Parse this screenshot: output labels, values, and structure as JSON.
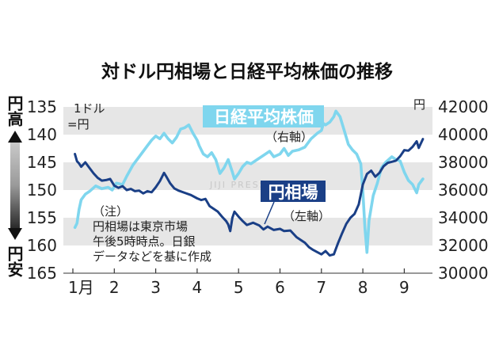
{
  "chart_data": {
    "type": "line",
    "title": "対ドル円相場と日経平均株価の推移",
    "x_ticks": [
      "1月",
      "2",
      "3",
      "4",
      "5",
      "6",
      "7",
      "8",
      "9"
    ],
    "left_axis": {
      "top_label": "円高",
      "bottom_label": "円安",
      "unit_label_1": "1ドル",
      "unit_label_2": "=円",
      "min": 135,
      "max": 165,
      "inverted": true,
      "ticks": [
        "135",
        "140",
        "145",
        "150",
        "155",
        "160",
        "165"
      ]
    },
    "right_axis": {
      "unit_label": "円",
      "min": 30000,
      "max": 42000,
      "ticks": [
        "42000",
        "40000",
        "38000",
        "36000",
        "34000",
        "32000",
        "30000"
      ]
    },
    "series": [
      {
        "name": "日経平均株価",
        "axis_note": "（右軸）",
        "axis": "right",
        "color": "#7fd6ee",
        "points": [
          [
            1.05,
            33300
          ],
          [
            1.1,
            33600
          ],
          [
            1.15,
            34600
          ],
          [
            1.2,
            35300
          ],
          [
            1.3,
            35700
          ],
          [
            1.4,
            35900
          ],
          [
            1.55,
            36300
          ],
          [
            1.7,
            36100
          ],
          [
            1.85,
            36200
          ],
          [
            1.95,
            36000
          ],
          [
            2.05,
            36500
          ],
          [
            2.2,
            36400
          ],
          [
            2.3,
            37000
          ],
          [
            2.45,
            37800
          ],
          [
            2.6,
            38400
          ],
          [
            2.7,
            38800
          ],
          [
            2.8,
            39200
          ],
          [
            2.9,
            39600
          ],
          [
            3.0,
            39900
          ],
          [
            3.1,
            39700
          ],
          [
            3.2,
            40100
          ],
          [
            3.3,
            39700
          ],
          [
            3.4,
            39400
          ],
          [
            3.5,
            39800
          ],
          [
            3.6,
            40400
          ],
          [
            3.7,
            40500
          ],
          [
            3.8,
            40700
          ],
          [
            3.9,
            40100
          ],
          [
            4.0,
            39600
          ],
          [
            4.05,
            39200
          ],
          [
            4.15,
            38600
          ],
          [
            4.25,
            38400
          ],
          [
            4.35,
            38700
          ],
          [
            4.45,
            38200
          ],
          [
            4.55,
            37200
          ],
          [
            4.65,
            37600
          ],
          [
            4.75,
            38200
          ],
          [
            4.85,
            37300
          ],
          [
            4.9,
            36800
          ],
          [
            5.0,
            37200
          ],
          [
            5.1,
            37700
          ],
          [
            5.2,
            38000
          ],
          [
            5.3,
            37900
          ],
          [
            5.45,
            38200
          ],
          [
            5.6,
            38500
          ],
          [
            5.75,
            38800
          ],
          [
            5.85,
            38400
          ],
          [
            6.0,
            38600
          ],
          [
            6.1,
            39000
          ],
          [
            6.2,
            38500
          ],
          [
            6.3,
            38800
          ],
          [
            6.45,
            38900
          ],
          [
            6.6,
            39100
          ],
          [
            6.75,
            39700
          ],
          [
            6.9,
            40100
          ],
          [
            7.0,
            40300
          ],
          [
            7.05,
            40800
          ],
          [
            7.1,
            40700
          ],
          [
            7.2,
            40900
          ],
          [
            7.3,
            41300
          ],
          [
            7.35,
            41700
          ],
          [
            7.45,
            41300
          ],
          [
            7.55,
            40300
          ],
          [
            7.65,
            39300
          ],
          [
            7.75,
            38900
          ],
          [
            7.85,
            38600
          ],
          [
            7.95,
            37900
          ],
          [
            8.0,
            35900
          ],
          [
            8.05,
            33300
          ],
          [
            8.1,
            31500
          ],
          [
            8.15,
            33800
          ],
          [
            8.25,
            35600
          ],
          [
            8.35,
            36500
          ],
          [
            8.45,
            37600
          ],
          [
            8.55,
            38000
          ],
          [
            8.7,
            38400
          ],
          [
            8.8,
            38200
          ],
          [
            8.9,
            38100
          ],
          [
            9.0,
            37300
          ],
          [
            9.1,
            36700
          ],
          [
            9.2,
            36400
          ],
          [
            9.3,
            35800
          ],
          [
            9.35,
            36400
          ],
          [
            9.45,
            36800
          ]
        ]
      },
      {
        "name": "円相場",
        "axis_note": "（左軸）",
        "axis": "left",
        "color": "#1a3f86",
        "points": [
          [
            1.05,
            143.5
          ],
          [
            1.1,
            144.8
          ],
          [
            1.15,
            145.2
          ],
          [
            1.2,
            145.8
          ],
          [
            1.3,
            145.0
          ],
          [
            1.4,
            146.0
          ],
          [
            1.5,
            147.0
          ],
          [
            1.6,
            147.8
          ],
          [
            1.7,
            148.3
          ],
          [
            1.8,
            148.2
          ],
          [
            1.9,
            148.0
          ],
          [
            2.0,
            149.2
          ],
          [
            2.1,
            149.6
          ],
          [
            2.2,
            149.3
          ],
          [
            2.3,
            150.0
          ],
          [
            2.4,
            149.8
          ],
          [
            2.5,
            150.2
          ],
          [
            2.6,
            150.1
          ],
          [
            2.7,
            150.6
          ],
          [
            2.8,
            150.2
          ],
          [
            2.9,
            150.4
          ],
          [
            3.0,
            149.5
          ],
          [
            3.1,
            148.4
          ],
          [
            3.2,
            146.9
          ],
          [
            3.25,
            147.5
          ],
          [
            3.35,
            148.8
          ],
          [
            3.45,
            149.7
          ],
          [
            3.55,
            150.1
          ],
          [
            3.7,
            150.5
          ],
          [
            3.85,
            150.9
          ],
          [
            4.0,
            151.5
          ],
          [
            4.1,
            151.8
          ],
          [
            4.2,
            151.6
          ],
          [
            4.3,
            152.9
          ],
          [
            4.4,
            153.4
          ],
          [
            4.5,
            153.9
          ],
          [
            4.6,
            154.8
          ],
          [
            4.7,
            155.6
          ],
          [
            4.75,
            156.2
          ],
          [
            4.8,
            157.4
          ],
          [
            4.85,
            155.0
          ],
          [
            4.9,
            153.9
          ],
          [
            5.0,
            154.8
          ],
          [
            5.1,
            155.6
          ],
          [
            5.2,
            156.3
          ],
          [
            5.35,
            155.9
          ],
          [
            5.5,
            156.4
          ],
          [
            5.6,
            157.1
          ],
          [
            5.7,
            156.6
          ],
          [
            5.85,
            157.2
          ],
          [
            6.0,
            157.0
          ],
          [
            6.1,
            157.4
          ],
          [
            6.25,
            157.3
          ],
          [
            6.4,
            158.5
          ],
          [
            6.5,
            159.0
          ],
          [
            6.6,
            159.5
          ],
          [
            6.7,
            160.3
          ],
          [
            6.8,
            160.8
          ],
          [
            6.9,
            161.2
          ],
          [
            7.0,
            161.6
          ],
          [
            7.1,
            161.0
          ],
          [
            7.2,
            161.8
          ],
          [
            7.3,
            161.6
          ],
          [
            7.4,
            159.6
          ],
          [
            7.5,
            157.8
          ],
          [
            7.6,
            156.1
          ],
          [
            7.7,
            155.0
          ],
          [
            7.8,
            154.3
          ],
          [
            7.9,
            152.6
          ],
          [
            8.0,
            149.0
          ],
          [
            8.1,
            147.1
          ],
          [
            8.2,
            146.5
          ],
          [
            8.3,
            147.6
          ],
          [
            8.4,
            146.9
          ],
          [
            8.5,
            145.7
          ],
          [
            8.6,
            145.1
          ],
          [
            8.7,
            144.9
          ],
          [
            8.8,
            144.7
          ],
          [
            8.9,
            143.9
          ],
          [
            9.0,
            142.8
          ],
          [
            9.1,
            142.9
          ],
          [
            9.2,
            142.2
          ],
          [
            9.3,
            141.2
          ],
          [
            9.35,
            142.4
          ],
          [
            9.45,
            140.8
          ]
        ]
      }
    ],
    "note_lines": [
      "（注）",
      "円相場は東京市場",
      "午後5時時点。日銀",
      "データなどを基に作成"
    ],
    "watermark": "JIJI PRESS",
    "colors": {
      "band": "#e6e6e6",
      "stock": "#7fd6ee",
      "yen": "#1a3f86"
    }
  }
}
